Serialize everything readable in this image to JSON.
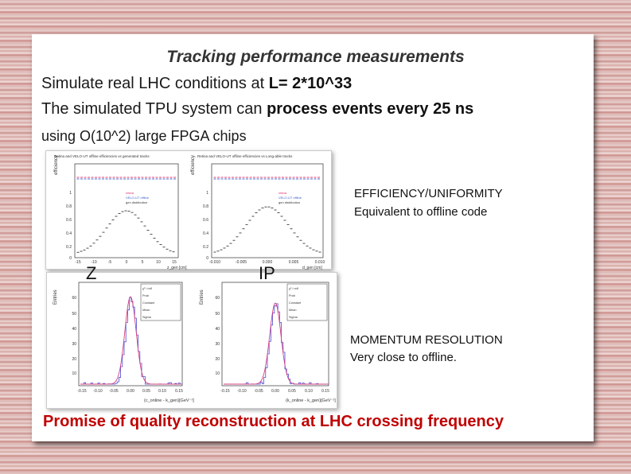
{
  "slide": {
    "title": "Tracking performance measurements",
    "line1_prefix": "Simulate real LHC conditions at ",
    "line1_bold": "L= 2*10^33",
    "line2_prefix": "The simulated TPU system can ",
    "line2_bold": "process events every 25 ns",
    "line3": "using O(10^2) large FPGA chips",
    "conclusion": "Promise of quality reconstruction at LHC crossing frequency"
  },
  "annotations": {
    "efficiency_title": "EFFICIENCY/UNIFORMITY",
    "efficiency_note": "Equivalent to offline code",
    "momentum_title": "MOMENTUM RESOLUTION",
    "momentum_note": "Very close to offline.",
    "label_z": "Z",
    "label_ip": "IP"
  },
  "figure_top": {
    "left_title": "Retina and VELO-UT offline efficiencies vs generated tracks",
    "right_title": "Retina and VELO-UT offline efficiencies vs Long-able tracks",
    "ylabel": "efficiency",
    "legend": [
      "retina",
      "VELO-UT offline",
      "gen distribution"
    ],
    "left_xlabel": "z_gen [cm]",
    "right_xlabel": "d_gen [cm]",
    "left_yticks": [
      "1",
      "0.8",
      "0.6",
      "0.4",
      "0.2",
      "0"
    ],
    "right_yticks": [
      "1",
      "0.8",
      "0.6",
      "0.4",
      "0.2",
      "0"
    ],
    "left_xticks": [
      "-15",
      "-10",
      "-5",
      "0",
      "5",
      "10",
      "15"
    ],
    "right_xticks": [
      "-0.010",
      "-0.005",
      "0.000",
      "0.005",
      "0.010"
    ]
  },
  "figure_bottom": {
    "ylabel": "Entries",
    "left_xlabel": "(c_online - k_gen)[GeV⁻¹]",
    "right_xlabel": "(k_online - k_gen)[GeV⁻¹]",
    "left_yticks": [
      "60",
      "50",
      "40",
      "30",
      "20",
      "10"
    ],
    "right_yticks": [
      "60",
      "50",
      "40",
      "30",
      "20",
      "10"
    ],
    "xticks": [
      "-0.15",
      "-0.10",
      "-0.05",
      "0.00",
      "0.05",
      "0.10",
      "0.15"
    ],
    "stats_keys": [
      "χ² / ndf",
      "Prob",
      "Constant",
      "Mean",
      "Sigma"
    ]
  },
  "colors": {
    "title": "#333333",
    "conclusion": "#c00000",
    "retina": "#e0306a",
    "offline": "#3a5fcd",
    "histogram": "#4a4ad6",
    "fit": "#d44080"
  }
}
